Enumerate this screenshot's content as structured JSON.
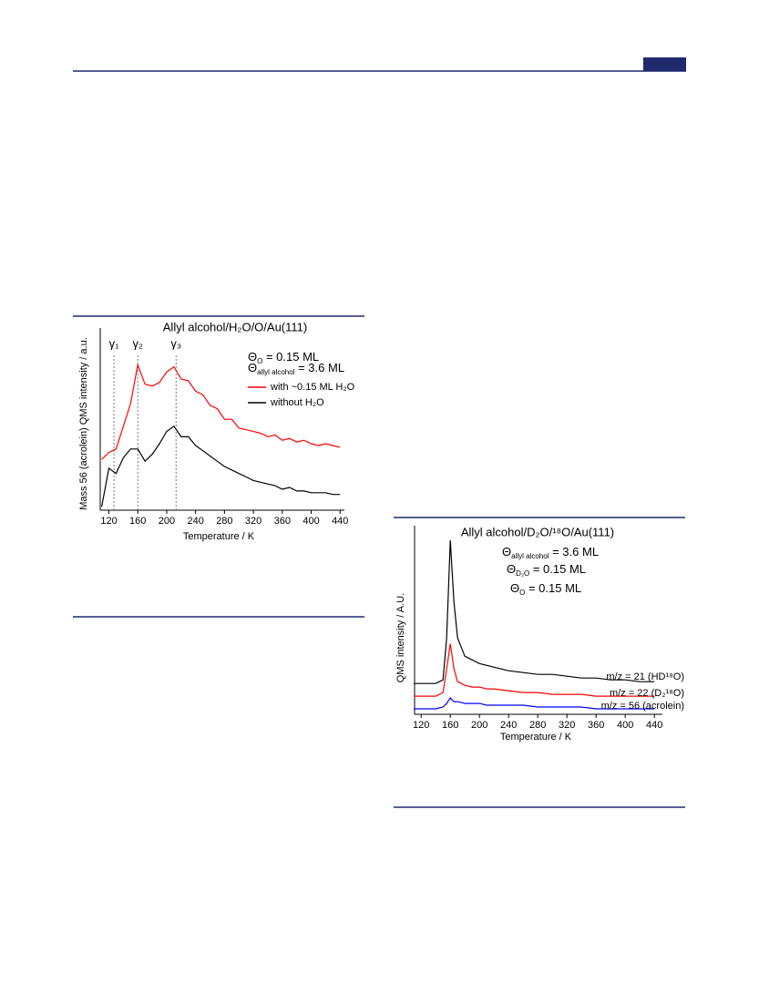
{
  "chart_data": [
    {
      "type": "line",
      "title": "Allyl alcohol/H₂O/O/Au(111)",
      "conditions": [
        {
          "main": "Θ",
          "sub": "O",
          "rest": " = 0.15 ML"
        },
        {
          "main": "Θ",
          "sub": "allyl alcohol",
          "rest": " = 3.6 ML"
        }
      ],
      "annotations": [
        {
          "label": "γ₁",
          "x": 127
        },
        {
          "label": "γ₂",
          "x": 160
        },
        {
          "label": "γ₃",
          "x": 213
        }
      ],
      "xlabel": "Temperature / K",
      "ylabel": "Mass 56 (acrolein) QMS intensity / a.u.",
      "x": [
        110,
        120,
        130,
        140,
        150,
        160,
        170,
        180,
        190,
        200,
        210,
        220,
        230,
        240,
        250,
        260,
        270,
        280,
        290,
        300,
        310,
        320,
        330,
        340,
        350,
        360,
        370,
        380,
        390,
        400,
        410,
        420,
        430,
        440
      ],
      "series": [
        {
          "name": "with ~0.15 ML H₂O",
          "color": "#ff0000",
          "values": [
            29,
            33,
            35,
            48,
            61,
            83,
            72,
            71,
            73,
            79,
            82,
            75,
            74,
            68,
            66,
            60,
            58,
            52,
            52,
            47,
            46,
            45,
            44,
            42,
            43,
            40,
            41,
            39,
            40,
            38,
            37,
            38,
            37,
            36
          ]
        },
        {
          "name": "without H₂O",
          "color": "#000000",
          "values": [
            2,
            24,
            21,
            30,
            35,
            35,
            28,
            32,
            38,
            45,
            48,
            42,
            42,
            37,
            34,
            31,
            28,
            25,
            23,
            21,
            19,
            17,
            16,
            15,
            14,
            12,
            13,
            11,
            11,
            10,
            10,
            10,
            9,
            9
          ]
        }
      ],
      "xlim": [
        108,
        446
      ],
      "ylim": [
        0,
        100
      ],
      "xticks": [
        120,
        160,
        200,
        240,
        280,
        320,
        360,
        400,
        440
      ],
      "legend": "upper right"
    },
    {
      "type": "line",
      "title": "Allyl alcohol/D₂O/¹⁸O/Au(111)",
      "conditions": [
        {
          "main": "Θ",
          "sub": "allyl alcohol",
          "rest": " = 3.6 ML"
        },
        {
          "main": "Θ",
          "sub": "D₂O",
          "rest": " = 0.15 ML"
        },
        {
          "main": "Θ",
          "sub": "O",
          "rest": " = 0.15 ML"
        }
      ],
      "xlabel": "Temperature / K",
      "ylabel": "QMS intensity / A.U.",
      "x": [
        110,
        120,
        130,
        140,
        150,
        155,
        160,
        165,
        170,
        180,
        190,
        200,
        210,
        220,
        240,
        260,
        280,
        300,
        320,
        340,
        360,
        380,
        400,
        420,
        440
      ],
      "series": [
        {
          "name": "m/z = 21 (HD¹⁸O)",
          "color": "#000000",
          "values": [
            17,
            17,
            17,
            17,
            19,
            42,
            96,
            62,
            42,
            32,
            30,
            28,
            27,
            26,
            24,
            23,
            22,
            22,
            21,
            20,
            20,
            19,
            19,
            18,
            18
          ]
        },
        {
          "name": "m/z = 22 (D₂¹⁸O)",
          "color": "#ff0000",
          "values": [
            10,
            10,
            10,
            10,
            12,
            25,
            39,
            25,
            18,
            16,
            15,
            15,
            14,
            14,
            13,
            12,
            12,
            11,
            11,
            11,
            10,
            10,
            10,
            10,
            10
          ]
        },
        {
          "name": "m/z = 56 (acrolein)",
          "color": "#0000ff",
          "values": [
            3,
            3,
            3,
            3,
            4,
            6,
            9,
            7,
            7,
            6,
            6,
            6,
            5,
            5,
            5,
            5,
            4,
            4,
            4,
            4,
            3,
            3,
            3,
            3,
            3
          ]
        }
      ],
      "xlim": [
        111,
        451
      ],
      "ylim": [
        0,
        100
      ],
      "xticks": [
        120,
        160,
        200,
        240,
        280,
        320,
        360,
        400,
        440
      ],
      "legend": "end-of-line"
    }
  ]
}
